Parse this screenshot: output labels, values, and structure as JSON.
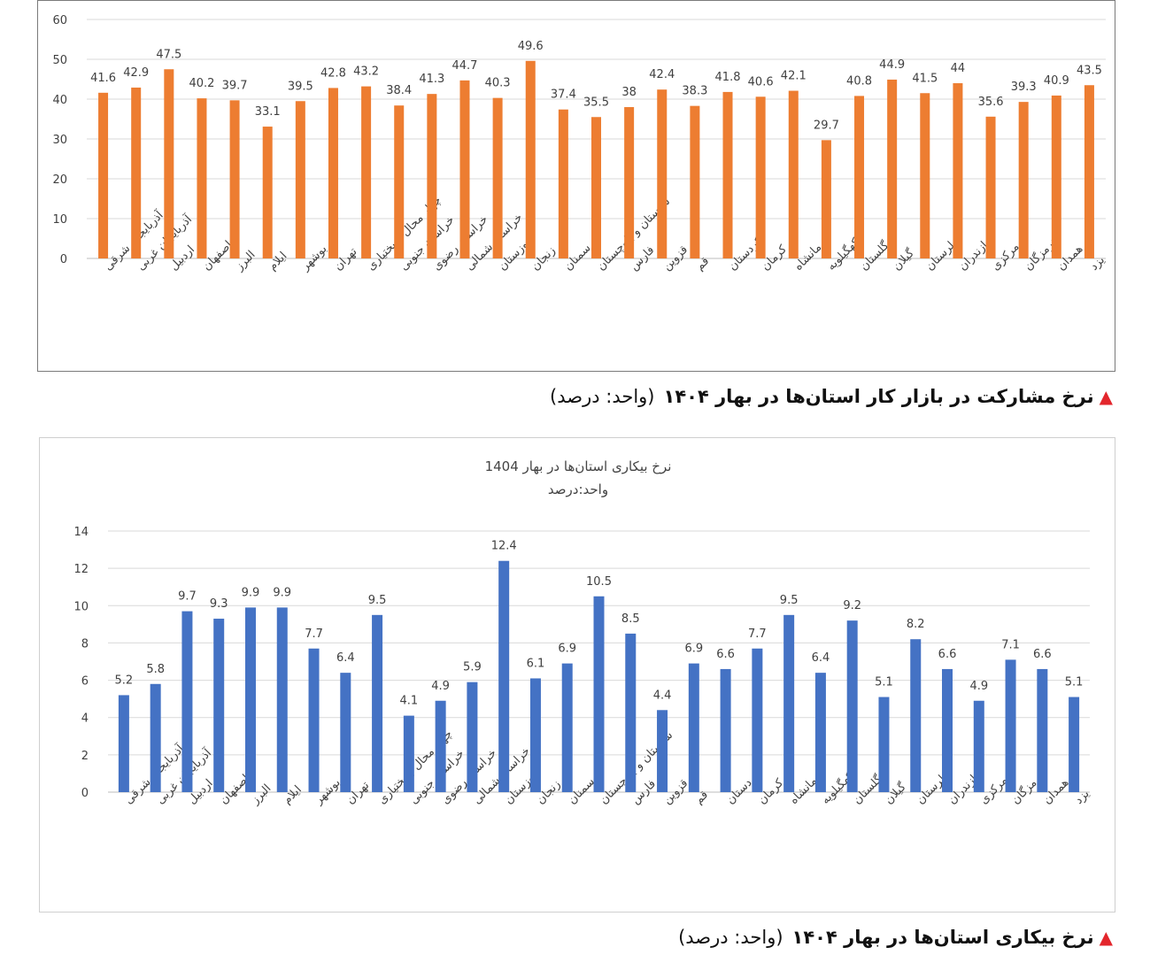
{
  "caption_participation": {
    "marker": "▲",
    "text": "نرخ مشارکت در بازار کار استان‌ها در بهار ۱۴۰۴",
    "unit": "(واحد: درصد)"
  },
  "caption_unemployment": {
    "marker": "▲",
    "text": "نرخ بیکاری استان‌ها در بهار ۱۴۰۴",
    "unit": "(واحد: درصد)"
  },
  "chart_data": [
    {
      "type": "bar",
      "title": "",
      "xlabel": "",
      "ylabel": "",
      "ylim": [
        0,
        60
      ],
      "yticks": [
        0,
        10,
        20,
        30,
        40,
        50,
        60
      ],
      "grid": true,
      "color": "#ed7d31",
      "categories": [
        "آذربایجان شرقی",
        "آذربایجان غربی",
        "اردبیل",
        "اصفهان",
        "البرز",
        "ایلام",
        "بوشهر",
        "تهران",
        "چهار محال و بختیاری",
        "خراسان جنوبی",
        "خراسان رضوی",
        "خراسان شمالی",
        "خوزستان",
        "زنجان",
        "سمنان",
        "سیستان و بلوچستان",
        "فارس",
        "قزوین",
        "قم",
        "کردستان",
        "کرمان",
        "کرمانشاه",
        "کهگیلویه",
        "گلستان",
        "گیلان",
        "لرستان",
        "مازندران",
        "مرکزی",
        "هرمزگان",
        "همدان",
        "یزد"
      ],
      "values": [
        41.6,
        42.9,
        47.5,
        40.2,
        39.7,
        33.1,
        39.5,
        42.8,
        43.2,
        38.4,
        41.3,
        44.7,
        40.3,
        49.6,
        37.4,
        35.5,
        38,
        42.4,
        38.3,
        41.8,
        40.6,
        42.1,
        29.7,
        40.8,
        44.9,
        41.5,
        44,
        35.6,
        39.3,
        40.9,
        43.5
      ]
    },
    {
      "type": "bar",
      "title": "نرخ بیکاری استان‌ها در بهار 1404",
      "subtitle": "واحد:درصد",
      "xlabel": "",
      "ylabel": "",
      "ylim": [
        0,
        14
      ],
      "yticks": [
        0,
        2,
        4,
        6,
        8,
        10,
        12,
        14
      ],
      "grid": true,
      "color": "#4472c4",
      "categories": [
        "آذربایجان شرقی",
        "آذربایجان غربی",
        "اردبیل",
        "اصفهان",
        "البرز",
        "ایلام",
        "بوشهر",
        "تهران",
        "چهار محال و بختیاری",
        "خراسان جنوبی",
        "خراسان رضوی",
        "خراسان شمالی",
        "خوزستان",
        "زنجان",
        "سمنان",
        "سیستان و بلوچستان",
        "فارس",
        "قزوین",
        "قم",
        "کردستان",
        "کرمان",
        "کرمانشاه",
        "کهگیلویه",
        "گلستان",
        "گیلان",
        "لرستان",
        "مازندران",
        "مرکزی",
        "هرمزگان",
        "همدان",
        "یزد"
      ],
      "values": [
        5.2,
        5.8,
        9.7,
        9.3,
        9.9,
        9.9,
        7.7,
        6.4,
        9.5,
        4.1,
        4.9,
        5.9,
        12.4,
        6.1,
        6.9,
        10.5,
        8.5,
        4.4,
        6.9,
        6.6,
        7.7,
        9.5,
        6.4,
        9.2,
        5.1,
        8.2,
        6.6,
        4.9,
        7.1,
        6.6,
        5.1
      ]
    }
  ]
}
